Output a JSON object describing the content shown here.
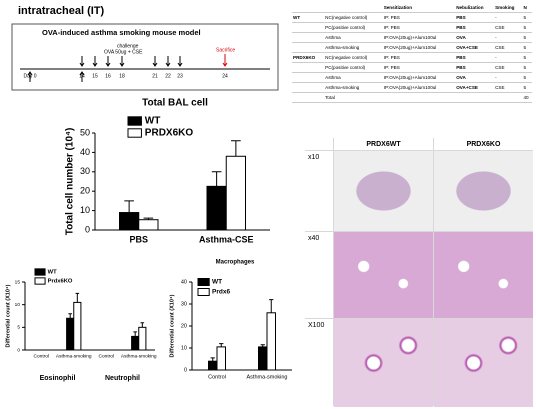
{
  "header": {
    "title": "intratracheal (IT)"
  },
  "timeline": {
    "title": "OVA-induced asthma smoking mouse model",
    "days": [
      "Day 0",
      "14",
      "15",
      "16",
      "18",
      "21",
      "22",
      "23",
      "24"
    ],
    "challenge": "challenge",
    "challenge_detail": "OVA 50ug + CSE",
    "sacrifice": "Sacrifice"
  },
  "chart_data": [
    {
      "type": "bar",
      "title": "Total BAL cell",
      "y_label": "Total cell number (10⁴)",
      "categories": [
        "PBS",
        "Asthma-CSE"
      ],
      "series": [
        {
          "name": "WT",
          "color": "#000000",
          "values": [
            9,
            22.5
          ],
          "errors": [
            6,
            7.5
          ]
        },
        {
          "name": "PRDX6KO",
          "color": "#ffffff",
          "values": [
            5.3,
            38
          ],
          "errors": [
            0.8,
            8
          ]
        }
      ],
      "ylim": [
        0,
        50
      ],
      "yticks": [
        0,
        10,
        20,
        30,
        40,
        50
      ]
    },
    {
      "type": "bar",
      "y_label": "Differential count (X10⁴)",
      "categories": [
        "Control",
        "Asthma-smoking",
        "Control",
        "Asthma-smoking"
      ],
      "group_labels": [
        "Eosinophil",
        "Neutrophil"
      ],
      "series": [
        {
          "name": "WT",
          "color": "#000000",
          "values": [
            0,
            7,
            0,
            3
          ],
          "errors": [
            0,
            1,
            0,
            1
          ]
        },
        {
          "name": "Prdx6KO",
          "color": "#ffffff",
          "values": [
            0,
            10.5,
            0,
            5
          ],
          "errors": [
            0,
            2,
            0,
            1
          ]
        }
      ],
      "ylim": [
        0,
        15
      ],
      "yticks": [
        0,
        5,
        10,
        15
      ]
    },
    {
      "type": "bar",
      "title": "Macrophages",
      "y_label": "Differential count (X10⁴)",
      "categories": [
        "Control",
        "Asthma-smoking"
      ],
      "series": [
        {
          "name": "WT",
          "color": "#000000",
          "values": [
            4,
            10.5
          ],
          "errors": [
            1.5,
            1
          ]
        },
        {
          "name": "Prdx6",
          "color": "#ffffff",
          "values": [
            10.5,
            26
          ],
          "errors": [
            1.5,
            6
          ]
        }
      ],
      "ylim": [
        0,
        40
      ],
      "yticks": [
        0,
        10,
        20,
        30,
        40
      ]
    }
  ],
  "table": {
    "header": [
      "Sensitization",
      "Nebulization",
      "Smoking",
      "N"
    ],
    "rows": [
      [
        "WT",
        "NC(negative control)",
        "IP: PBS",
        "PBS",
        "-",
        "5"
      ],
      [
        "",
        "PC(positive control)",
        "IP: PBS",
        "PBS",
        "CSE",
        "5"
      ],
      [
        "",
        "Asthma",
        "IP:OVA(20ug)+Alum100ul",
        "OVA",
        "-",
        "5"
      ],
      [
        "",
        "Asthma-smoking",
        "IP:OVA(20ug)+Alum100ul",
        "OVA+CSE",
        "CSE",
        "5"
      ],
      [
        "PRDX6KO",
        "NC(negative control)",
        "IP: PBS",
        "PBS",
        "-",
        "5"
      ],
      [
        "",
        "PC(positive control)",
        "IP: PBS",
        "PBS",
        "CSE",
        "5"
      ],
      [
        "",
        "Asthma",
        "IP:OVA(20ug)+Alum100ul",
        "OVA",
        "-",
        "5"
      ],
      [
        "",
        "Asthma-smoking",
        "IP:OVA(20ug)+Alum100ul",
        "OVA+CSE",
        "CSE",
        "5"
      ],
      [
        "",
        "Total",
        "",
        "",
        "",
        "40"
      ]
    ]
  },
  "histology": {
    "columns": [
      "PRDX6WT",
      "PRDX6KO"
    ],
    "rows": [
      "x10",
      "x40",
      "X100"
    ]
  }
}
